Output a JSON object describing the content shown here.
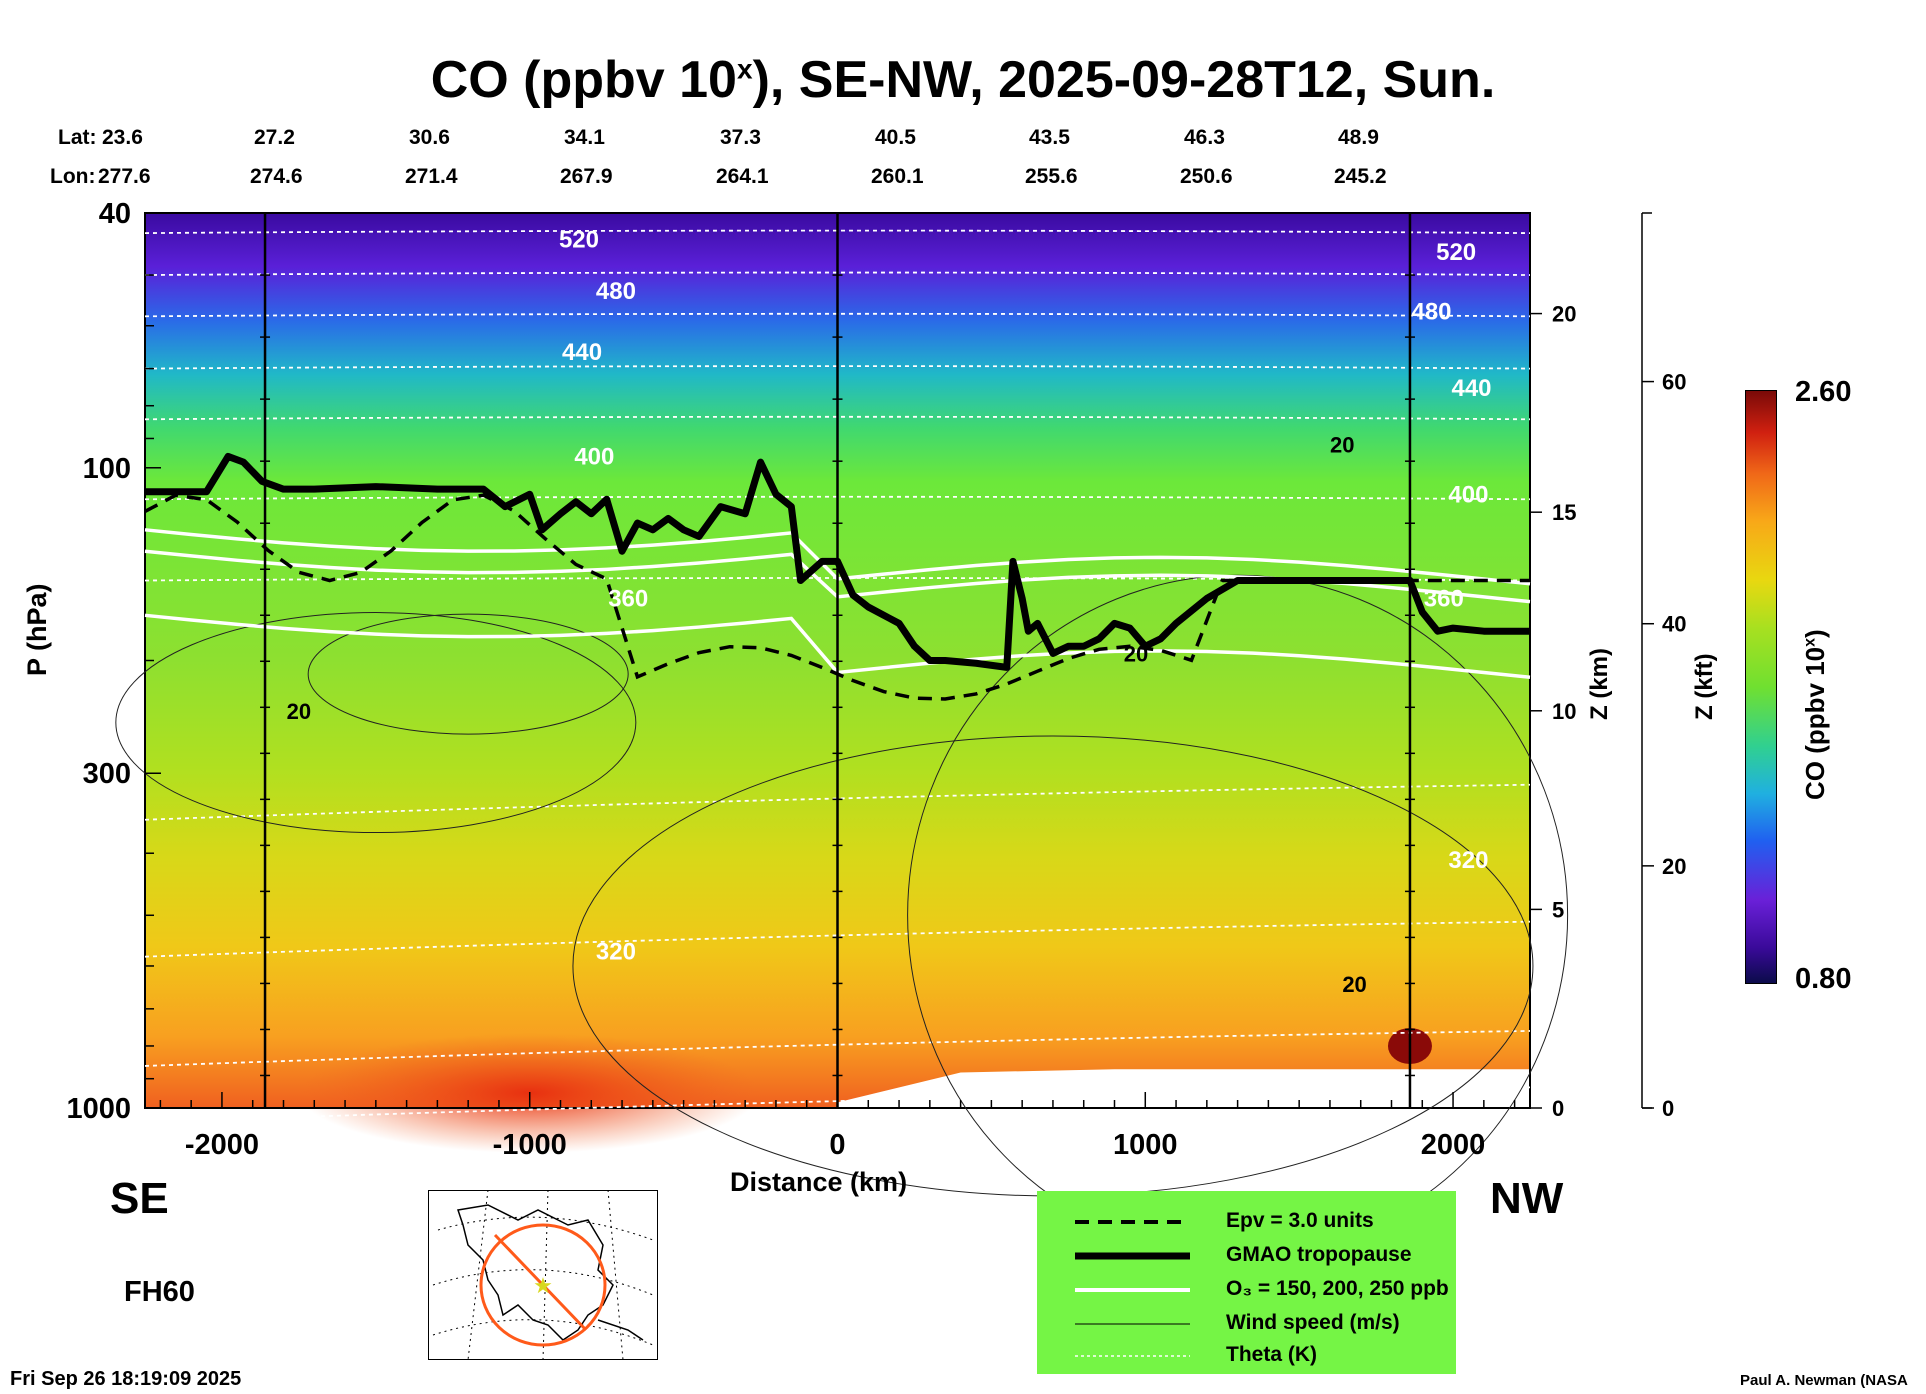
{
  "title": {
    "main": "CO (ppbv 10",
    "sup": "x",
    "rest": "), SE-NW, 2025-09-28T12, Sun."
  },
  "coords": {
    "lat_label": "Lat:",
    "lon_label": "Lon:",
    "lat": [
      "23.6",
      "27.2",
      "30.6",
      "34.1",
      "37.3",
      "40.5",
      "43.5",
      "46.3",
      "48.9"
    ],
    "lon": [
      "277.6",
      "274.6",
      "271.4",
      "267.9",
      "264.1",
      "260.1",
      "255.6",
      "250.6",
      "245.2"
    ]
  },
  "axes": {
    "ylabel": "P (hPa)",
    "xlabel": "Distance (km)",
    "z_km_label": "Z (km)",
    "z_kft_label": "Z (kft)"
  },
  "directions": {
    "left": "SE",
    "right": "NW"
  },
  "forecast_hour": "FH60",
  "timestamp": "Fri Sep 26 18:19:09 2025",
  "credit": "Paul A. Newman (NASA",
  "colorbar": {
    "label_main": "CO (ppbv 10",
    "label_sup": "x",
    "label_end": ")",
    "max": "2.60",
    "min": "0.80"
  },
  "legend": [
    {
      "style": "dashed",
      "label": "Epv = 3.0 units"
    },
    {
      "style": "thick",
      "label": "GMAO tropopause"
    },
    {
      "style": "white",
      "label": "O₃ = 150, 200, 250 ppb"
    },
    {
      "style": "thin",
      "label": "Wind speed (m/s)"
    },
    {
      "style": "dotted",
      "label": "Theta (K)"
    }
  ],
  "chart_data": {
    "type": "heatmap",
    "x_ticks": [
      -2000,
      -1000,
      0,
      1000,
      2000
    ],
    "xlim": [
      -2250,
      2250
    ],
    "y_ticks_hpa": [
      40,
      100,
      300,
      1000
    ],
    "ylim_hpa": [
      1000,
      40
    ],
    "y_scale": "log",
    "z_km_ticks": [
      0,
      5,
      10,
      15,
      20
    ],
    "z_kft_ticks": [
      0,
      20,
      40,
      60
    ],
    "colorbar_range": [
      0.8,
      2.6
    ],
    "theta_labels": [
      {
        "value": "520",
        "x": -840,
        "p": 44
      },
      {
        "value": "480",
        "x": -720,
        "p": 53
      },
      {
        "value": "440",
        "x": -830,
        "p": 66
      },
      {
        "value": "400",
        "x": -790,
        "p": 96
      },
      {
        "value": "360",
        "x": -680,
        "p": 160
      },
      {
        "value": "320",
        "x": -720,
        "p": 570
      },
      {
        "value": "520",
        "x": 2010,
        "p": 46
      },
      {
        "value": "480",
        "x": 1930,
        "p": 57
      },
      {
        "value": "440",
        "x": 2060,
        "p": 75
      },
      {
        "value": "400",
        "x": 2050,
        "p": 110
      },
      {
        "value": "360",
        "x": 1970,
        "p": 160
      },
      {
        "value": "320",
        "x": 2050,
        "p": 410
      }
    ],
    "wind_labels": [
      {
        "value": "20",
        "x": -1750,
        "p": 240
      },
      {
        "value": "20",
        "x": 1640,
        "p": 92
      },
      {
        "value": "20",
        "x": 970,
        "p": 195
      },
      {
        "value": "20",
        "x": 1680,
        "p": 640
      }
    ],
    "vertical_markers_km": [
      -1860,
      0,
      1860
    ],
    "tropopause": {
      "x": [
        -2250,
        -2050,
        -1980,
        -1930,
        -1870,
        -1800,
        -1700,
        -1500,
        -1300,
        -1150,
        -1080,
        -1000,
        -960,
        -900,
        -850,
        -800,
        -750,
        -700,
        -650,
        -600,
        -550,
        -500,
        -450,
        -380,
        -300,
        -250,
        -200,
        -150,
        -120,
        -50,
        0,
        50,
        100,
        200,
        250,
        300,
        350,
        450,
        550,
        570,
        600,
        620,
        650,
        700,
        750,
        800,
        850,
        900,
        950,
        1000,
        1050,
        1100,
        1200,
        1300,
        1500,
        1700,
        1860,
        1900,
        1950,
        2000,
        2100,
        2250
      ],
      "p": [
        109,
        109,
        96,
        98,
        105,
        108,
        108,
        107,
        108,
        108,
        115,
        110,
        125,
        118,
        113,
        118,
        112,
        135,
        122,
        125,
        120,
        125,
        128,
        115,
        118,
        98,
        110,
        115,
        150,
        140,
        140,
        158,
        165,
        175,
        190,
        200,
        200,
        202,
        205,
        140,
        160,
        180,
        175,
        195,
        190,
        190,
        185,
        175,
        178,
        190,
        185,
        175,
        160,
        150,
        150,
        150,
        150,
        168,
        180,
        178,
        180,
        180
      ]
    }
  }
}
